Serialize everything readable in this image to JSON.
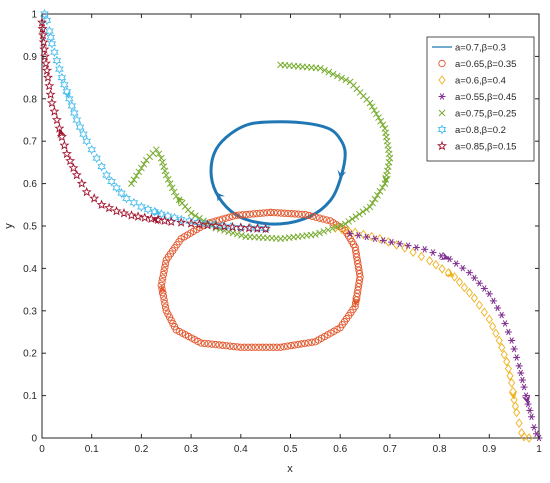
{
  "chart_data": {
    "type": "line",
    "xlabel": "x",
    "ylabel": "y",
    "xlim": [
      0,
      1
    ],
    "ylim": [
      0,
      1
    ],
    "xticks": [
      "0",
      "0.1",
      "0.2",
      "0.3",
      "0.4",
      "0.5",
      "0.6",
      "0.7",
      "0.8",
      "0.9",
      "1"
    ],
    "yticks": [
      "0",
      "0.1",
      "0.2",
      "0.3",
      "0.4",
      "0.5",
      "0.6",
      "0.7",
      "0.8",
      "0.9",
      "1"
    ],
    "legend_position": "top-right",
    "grid": false,
    "series": [
      {
        "name": "a=0.7,β=0.3",
        "marker": "line",
        "color": "#1f77b4",
        "x": [
          0.48,
          0.54,
          0.58,
          0.6,
          0.61,
          0.6,
          0.58,
          0.54,
          0.48,
          0.42,
          0.38,
          0.35,
          0.34,
          0.35,
          0.38,
          0.42,
          0.48
        ],
        "y": [
          0.746,
          0.741,
          0.728,
          0.705,
          0.67,
          0.61,
          0.56,
          0.523,
          0.505,
          0.512,
          0.535,
          0.58,
          0.63,
          0.68,
          0.718,
          0.741,
          0.746
        ]
      },
      {
        "name": "a=0.65,β=0.35",
        "marker": "circle",
        "color": "#e2562b",
        "x": [
          0.46,
          0.53,
          0.58,
          0.61,
          0.63,
          0.64,
          0.63,
          0.6,
          0.55,
          0.48,
          0.4,
          0.32,
          0.27,
          0.25,
          0.24,
          0.25,
          0.28,
          0.33,
          0.39,
          0.46
        ],
        "y": [
          0.532,
          0.527,
          0.512,
          0.49,
          0.45,
          0.38,
          0.31,
          0.26,
          0.227,
          0.214,
          0.214,
          0.224,
          0.255,
          0.3,
          0.36,
          0.42,
          0.47,
          0.505,
          0.525,
          0.532
        ]
      },
      {
        "name": "a=0.6,β=0.4",
        "marker": "diamond",
        "color": "#f0b21e",
        "x": [
          0.59,
          0.63,
          0.68,
          0.73,
          0.78,
          0.83,
          0.87,
          0.9,
          0.92,
          0.935,
          0.945,
          0.95,
          0.955,
          0.96,
          0.965,
          0.97,
          0.98
        ],
        "y": [
          0.495,
          0.485,
          0.47,
          0.448,
          0.418,
          0.38,
          0.33,
          0.28,
          0.23,
          0.18,
          0.13,
          0.09,
          0.06,
          0.035,
          0.012,
          0.003,
          0.0
        ]
      },
      {
        "name": "a=0.55,β=0.45",
        "marker": "star",
        "color": "#7e2f8e",
        "x": [
          0.62,
          0.67,
          0.72,
          0.77,
          0.82,
          0.86,
          0.9,
          0.925,
          0.945,
          0.96,
          0.97,
          0.978,
          0.985,
          0.99,
          0.995,
          1.0
        ],
        "y": [
          0.482,
          0.47,
          0.458,
          0.445,
          0.422,
          0.39,
          0.34,
          0.29,
          0.23,
          0.17,
          0.12,
          0.08,
          0.05,
          0.025,
          0.01,
          0.0
        ]
      },
      {
        "name": "a=0.75,β=0.25",
        "marker": "x",
        "color": "#77ac30",
        "x": [
          0.48,
          0.56,
          0.62,
          0.66,
          0.69,
          0.7,
          0.69,
          0.66,
          0.61,
          0.55,
          0.48,
          0.41,
          0.35,
          0.3,
          0.27,
          0.25,
          0.24,
          0.23,
          0.21,
          0.18
        ],
        "y": [
          0.88,
          0.872,
          0.84,
          0.79,
          0.73,
          0.66,
          0.6,
          0.545,
          0.505,
          0.48,
          0.47,
          0.475,
          0.495,
          0.53,
          0.57,
          0.62,
          0.66,
          0.68,
          0.655,
          0.6
        ]
      },
      {
        "name": "a=0.8,β=0.2",
        "marker": "hexagram",
        "color": "#4dbeee",
        "x": [
          0.005,
          0.01,
          0.015,
          0.02,
          0.03,
          0.04,
          0.055,
          0.07,
          0.09,
          0.11,
          0.13,
          0.15,
          0.17,
          0.2,
          0.24,
          0.28,
          0.33,
          0.38,
          0.42,
          0.45
        ],
        "y": [
          1.0,
          0.985,
          0.96,
          0.93,
          0.89,
          0.85,
          0.8,
          0.75,
          0.7,
          0.66,
          0.62,
          0.59,
          0.565,
          0.545,
          0.528,
          0.515,
          0.505,
          0.498,
          0.495,
          0.494
        ]
      },
      {
        "name": "a=0.85,β=0.15",
        "marker": "pentagram",
        "color": "#a2142f",
        "x": [
          0.45,
          0.4,
          0.35,
          0.3,
          0.26,
          0.22,
          0.18,
          0.15,
          0.12,
          0.09,
          0.07,
          0.05,
          0.035,
          0.02,
          0.012,
          0.006,
          0.002,
          0.0
        ],
        "y": [
          0.493,
          0.496,
          0.5,
          0.506,
          0.51,
          0.517,
          0.525,
          0.535,
          0.55,
          0.58,
          0.62,
          0.67,
          0.73,
          0.79,
          0.85,
          0.9,
          0.95,
          0.98
        ]
      }
    ]
  }
}
